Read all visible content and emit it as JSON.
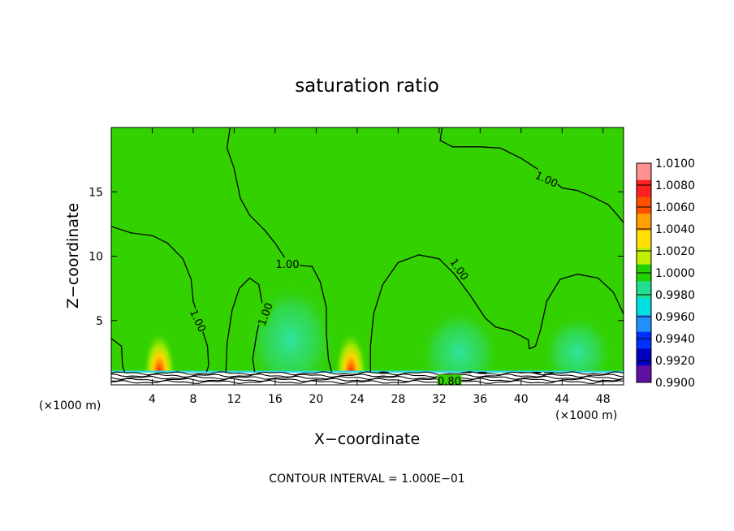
{
  "chart_data": {
    "type": "heatmap",
    "title": "saturation ratio",
    "xlabel": "X−coordinate",
    "ylabel": "Z−coordinate",
    "x_unit": "(×1000 m)",
    "x_unit_right": "(×1000 m)",
    "xlim": [
      0,
      50
    ],
    "ylim": [
      0,
      20
    ],
    "xticks": [
      4,
      8,
      12,
      16,
      20,
      24,
      28,
      32,
      36,
      40,
      44,
      48
    ],
    "yticks": [
      5,
      10,
      15
    ],
    "footer": "CONTOUR INTERVAL = 1.000E−01",
    "colorbar": {
      "labels": [
        "1.0100",
        "1.0080",
        "1.0060",
        "1.0040",
        "1.0020",
        "1.0000",
        "0.9980",
        "0.9960",
        "0.9940",
        "0.9920",
        "0.9900"
      ],
      "colors": [
        "#ff9090",
        "#ff2020",
        "#ff5000",
        "#ffa000",
        "#ffe000",
        "#c0f000",
        "#20d000",
        "#20e090",
        "#00e0e0",
        "#2090ff",
        "#0030ff",
        "#0000c0",
        "#6010a0"
      ]
    },
    "background_value": 1.0,
    "contour_labels": [
      {
        "text": "1.00",
        "x": 8.5,
        "z": 5.0,
        "rotate": 65
      },
      {
        "text": "1.00",
        "x": 15.0,
        "z": 5.5,
        "rotate": -70
      },
      {
        "text": "1.00",
        "x": 17.2,
        "z": 9.4,
        "rotate": 0
      },
      {
        "text": "1.00",
        "x": 34.0,
        "z": 9.0,
        "rotate": 55
      },
      {
        "text": "1.00",
        "x": 42.5,
        "z": 16.0,
        "rotate": 25
      },
      {
        "text": "0.80",
        "x": 33.0,
        "z": 0.3,
        "rotate": 0
      }
    ],
    "contours": [
      [
        [
          0,
          12.3
        ],
        [
          2,
          11.8
        ],
        [
          4,
          11.6
        ],
        [
          5.5,
          11.0
        ],
        [
          7,
          9.8
        ],
        [
          7.8,
          8.2
        ],
        [
          8,
          6.5
        ],
        [
          8.6,
          5.0
        ],
        [
          9.4,
          3.0
        ],
        [
          9.5,
          1.5
        ],
        [
          9.3,
          1.0
        ]
      ],
      [
        [
          0,
          3.6
        ],
        [
          1,
          3.0
        ],
        [
          1.1,
          1.5
        ],
        [
          1.3,
          1.0
        ]
      ],
      [
        [
          11.2,
          1.0
        ],
        [
          11.3,
          3.2
        ],
        [
          11.8,
          5.8
        ],
        [
          12.5,
          7.5
        ],
        [
          13.5,
          8.3
        ],
        [
          14.4,
          7.8
        ],
        [
          14.8,
          6.0
        ],
        [
          14.2,
          4.0
        ],
        [
          13.8,
          2.0
        ],
        [
          14,
          1.0
        ]
      ],
      [
        [
          11.6,
          20
        ],
        [
          11.3,
          18.4
        ],
        [
          12,
          16.8
        ],
        [
          12.6,
          14.5
        ],
        [
          13.5,
          13.2
        ],
        [
          15,
          12.0
        ],
        [
          16,
          11.0
        ],
        [
          17,
          9.8
        ],
        [
          18,
          9.3
        ],
        [
          19.6,
          9.2
        ],
        [
          20.4,
          8.0
        ],
        [
          21,
          6.0
        ],
        [
          21,
          4.0
        ],
        [
          21.2,
          2.0
        ],
        [
          21.5,
          1.0
        ]
      ],
      [
        [
          25.3,
          1.0
        ],
        [
          25.3,
          3.0
        ],
        [
          25.6,
          5.5
        ],
        [
          26.5,
          7.8
        ],
        [
          28,
          9.5
        ],
        [
          30,
          10.1
        ],
        [
          32,
          9.8
        ],
        [
          33.5,
          8.6
        ],
        [
          35,
          7.0
        ],
        [
          36.5,
          5.2
        ],
        [
          37.5,
          4.5
        ],
        [
          39,
          4.2
        ],
        [
          40,
          3.8
        ],
        [
          40.7,
          3.5
        ],
        [
          40.8,
          2.8
        ],
        [
          41.4,
          3.0
        ],
        [
          41.9,
          4.3
        ],
        [
          42.5,
          6.5
        ],
        [
          43.8,
          8.2
        ],
        [
          45.5,
          8.6
        ],
        [
          47.5,
          8.3
        ],
        [
          49,
          7.2
        ],
        [
          50,
          5.5
        ]
      ],
      [
        [
          32.3,
          20
        ],
        [
          32.1,
          19.0
        ],
        [
          33.3,
          18.5
        ],
        [
          36,
          18.5
        ],
        [
          38,
          18.4
        ],
        [
          40,
          17.6
        ],
        [
          42.5,
          16.3
        ],
        [
          44,
          15.3
        ],
        [
          45.5,
          15.1
        ],
        [
          47,
          14.6
        ],
        [
          48.5,
          14.0
        ],
        [
          49.4,
          13.2
        ],
        [
          50,
          12.6
        ]
      ]
    ],
    "bumps": [
      [
        26.6,
        0.55
      ],
      [
        34.7,
        0.45
      ],
      [
        36.2,
        0.5
      ],
      [
        40.2,
        0.45
      ],
      [
        41.5,
        0.5
      ],
      [
        42.7,
        0.45
      ]
    ],
    "hotspots": [
      {
        "x": 4.7,
        "z": 1.0,
        "peak": 1.01,
        "rx": 1.6,
        "rz": 3.2
      },
      {
        "x": 23.4,
        "z": 1.0,
        "peak": 1.01,
        "rx": 1.6,
        "rz": 3.2
      }
    ],
    "cool_regions": [
      {
        "x": 17.5,
        "z": 3.5,
        "rx": 4.5,
        "rz": 4.5
      },
      {
        "x": 34.0,
        "z": 2.5,
        "rx": 4.0,
        "rz": 3.5
      },
      {
        "x": 45.5,
        "z": 2.5,
        "rx": 3.5,
        "rz": 3.0
      }
    ]
  }
}
